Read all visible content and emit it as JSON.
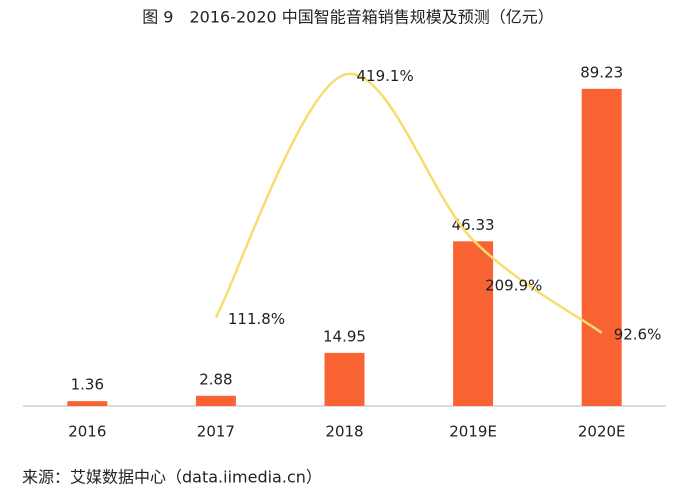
{
  "chart_data": {
    "type": "bar",
    "title": "图 9　2016-2020 中国智能音箱销售规模及预测（亿元）",
    "categories": [
      "2016",
      "2017",
      "2018",
      "2019E",
      "2020E"
    ],
    "series": [
      {
        "type": "bar",
        "color": "#f96232",
        "values": [
          1.36,
          2.88,
          14.95,
          46.33,
          89.23
        ]
      },
      {
        "type": "line",
        "axis": "y2",
        "color": "#f7dc6f",
        "values": [
          null,
          111.8,
          419.1,
          209.9,
          92.6
        ],
        "value_labels": [
          null,
          "111.8%",
          "419.1%",
          "209.9%",
          "92.6%"
        ]
      }
    ],
    "ylim": [
      0,
      93.4
    ],
    "y2lim": [
      0,
      420
    ],
    "source": "来源：艾媒数据中心（data.iimedia.cn）"
  }
}
